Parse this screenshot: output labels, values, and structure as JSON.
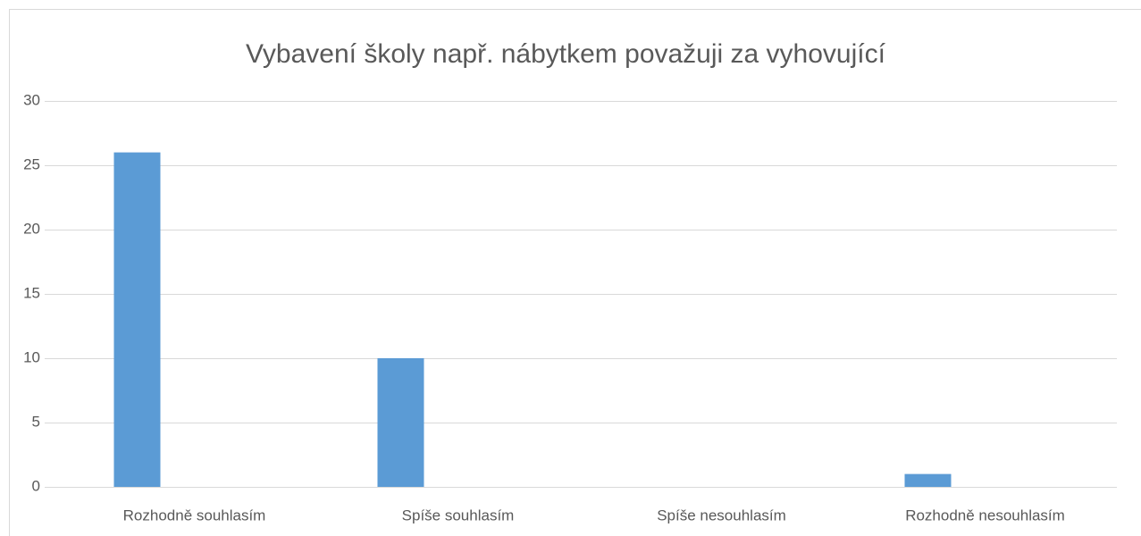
{
  "chart_data": {
    "type": "bar",
    "title": "Vybavení školy např. nábytkem považuji za vyhovující",
    "categories": [
      "Rozhodně souhlasím",
      "Spíše souhlasím",
      "Spíše nesouhlasím",
      "Rozhodně nesouhlasím"
    ],
    "values": [
      26,
      10,
      0,
      1
    ],
    "color": "#5b9bd5",
    "ylim": [
      0,
      30
    ],
    "yticks": [
      0,
      5,
      10,
      15,
      20,
      25,
      30
    ],
    "grid": true
  }
}
